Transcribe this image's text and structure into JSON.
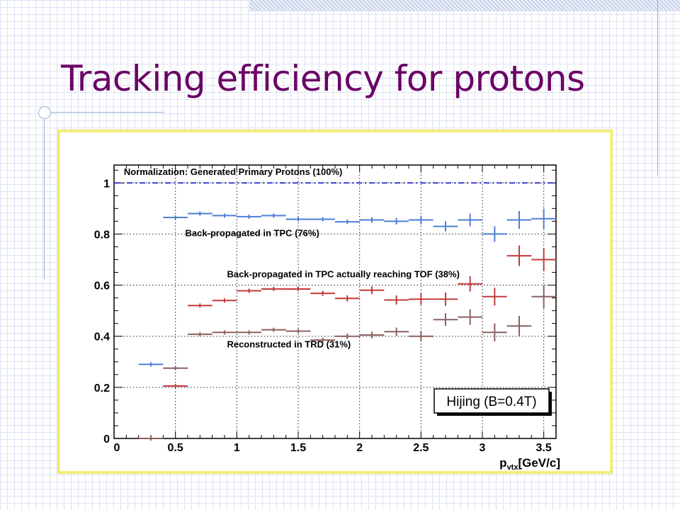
{
  "slide": {
    "title": "Tracking efficiency for protons"
  },
  "chart_data": {
    "type": "scatter",
    "xlabel": "p_vtx [GeV/c]",
    "xlabel_main": "p",
    "xlabel_sub": "vtx",
    "xlabel_unit": "[GeV/c]",
    "ylabel": "",
    "xlim": [
      0,
      3.6
    ],
    "ylim": [
      0,
      1.07
    ],
    "x_ticks": [
      {
        "value": 0,
        "label": "0"
      },
      {
        "value": 0.5,
        "label": "0.5"
      },
      {
        "value": 1,
        "label": "1"
      },
      {
        "value": 1.5,
        "label": "1.5"
      },
      {
        "value": 2,
        "label": "2"
      },
      {
        "value": 2.5,
        "label": "2.5"
      },
      {
        "value": 3,
        "label": "3"
      },
      {
        "value": 3.5,
        "label": "3.5"
      }
    ],
    "y_ticks": [
      {
        "value": 0,
        "label": "0"
      },
      {
        "value": 0.2,
        "label": "0.2"
      },
      {
        "value": 0.4,
        "label": "0.4"
      },
      {
        "value": 0.6,
        "label": "0.6"
      },
      {
        "value": 0.8,
        "label": "0.8"
      },
      {
        "value": 1,
        "label": "1"
      }
    ],
    "grid": true,
    "reference_line": {
      "y": 1.0,
      "color": "#3b3bd4"
    },
    "annotations": [
      {
        "text": "Normalization: Generated Primary Protons (100%)",
        "x": 0.08,
        "y": 1.045
      },
      {
        "text": "Back-propagated in TPC (76%)",
        "x": 0.58,
        "y": 0.805
      },
      {
        "text": "Back-propagated in TPC actually reaching TOF (38%)",
        "x": 0.92,
        "y": 0.645
      },
      {
        "text": "Reconstructed in TRD (31%)",
        "x": 0.92,
        "y": 0.37
      }
    ],
    "legend_box": {
      "text": "Hijing (B=0.4T)",
      "placement": "bottom-right"
    },
    "series": [
      {
        "color": "#4d7fd6",
        "points": [
          {
            "x": 0.3,
            "y": 0.29,
            "xerr": 0.1,
            "yerr": 0.003
          },
          {
            "x": 0.5,
            "y": 0.865,
            "xerr": 0.1,
            "yerr": 0.004
          },
          {
            "x": 0.7,
            "y": 0.88,
            "xerr": 0.1,
            "yerr": 0.004
          },
          {
            "x": 0.9,
            "y": 0.872,
            "xerr": 0.1,
            "yerr": 0.004
          },
          {
            "x": 1.1,
            "y": 0.868,
            "xerr": 0.1,
            "yerr": 0.005
          },
          {
            "x": 1.3,
            "y": 0.872,
            "xerr": 0.1,
            "yerr": 0.005
          },
          {
            "x": 1.5,
            "y": 0.858,
            "xerr": 0.1,
            "yerr": 0.006
          },
          {
            "x": 1.7,
            "y": 0.858,
            "xerr": 0.1,
            "yerr": 0.007
          },
          {
            "x": 1.9,
            "y": 0.848,
            "xerr": 0.1,
            "yerr": 0.009
          },
          {
            "x": 2.1,
            "y": 0.855,
            "xerr": 0.1,
            "yerr": 0.011
          },
          {
            "x": 2.3,
            "y": 0.85,
            "xerr": 0.1,
            "yerr": 0.013
          },
          {
            "x": 2.5,
            "y": 0.855,
            "xerr": 0.1,
            "yerr": 0.017
          },
          {
            "x": 2.7,
            "y": 0.83,
            "xerr": 0.1,
            "yerr": 0.02
          },
          {
            "x": 2.9,
            "y": 0.855,
            "xerr": 0.1,
            "yerr": 0.025
          },
          {
            "x": 3.1,
            "y": 0.8,
            "xerr": 0.1,
            "yerr": 0.03
          },
          {
            "x": 3.3,
            "y": 0.855,
            "xerr": 0.1,
            "yerr": 0.035
          },
          {
            "x": 3.5,
            "y": 0.86,
            "xerr": 0.1,
            "yerr": 0.04
          }
        ]
      },
      {
        "color": "#c43a3a",
        "points": [
          {
            "x": 0.3,
            "y": 0.0,
            "xerr": 0.1,
            "yerr": 0.002
          },
          {
            "x": 0.5,
            "y": 0.205,
            "xerr": 0.1,
            "yerr": 0.003
          },
          {
            "x": 0.7,
            "y": 0.52,
            "xerr": 0.1,
            "yerr": 0.004
          },
          {
            "x": 0.9,
            "y": 0.54,
            "xerr": 0.1,
            "yerr": 0.005
          },
          {
            "x": 1.1,
            "y": 0.578,
            "xerr": 0.1,
            "yerr": 0.006
          },
          {
            "x": 1.3,
            "y": 0.585,
            "xerr": 0.1,
            "yerr": 0.007
          },
          {
            "x": 1.5,
            "y": 0.585,
            "xerr": 0.1,
            "yerr": 0.008
          },
          {
            "x": 1.7,
            "y": 0.568,
            "xerr": 0.1,
            "yerr": 0.01
          },
          {
            "x": 1.9,
            "y": 0.548,
            "xerr": 0.1,
            "yerr": 0.012
          },
          {
            "x": 2.1,
            "y": 0.58,
            "xerr": 0.1,
            "yerr": 0.015
          },
          {
            "x": 2.3,
            "y": 0.542,
            "xerr": 0.1,
            "yerr": 0.018
          },
          {
            "x": 2.5,
            "y": 0.545,
            "xerr": 0.1,
            "yerr": 0.022
          },
          {
            "x": 2.7,
            "y": 0.545,
            "xerr": 0.1,
            "yerr": 0.026
          },
          {
            "x": 2.9,
            "y": 0.605,
            "xerr": 0.1,
            "yerr": 0.03
          },
          {
            "x": 3.1,
            "y": 0.555,
            "xerr": 0.1,
            "yerr": 0.035
          },
          {
            "x": 3.3,
            "y": 0.715,
            "xerr": 0.1,
            "yerr": 0.04
          },
          {
            "x": 3.5,
            "y": 0.7,
            "xerr": 0.1,
            "yerr": 0.045
          }
        ]
      },
      {
        "color": "#8c6060",
        "points": [
          {
            "x": 0.3,
            "y": 0.0,
            "xerr": 0.1,
            "yerr": 0.002
          },
          {
            "x": 0.5,
            "y": 0.275,
            "xerr": 0.1,
            "yerr": 0.003
          },
          {
            "x": 0.7,
            "y": 0.408,
            "xerr": 0.1,
            "yerr": 0.004
          },
          {
            "x": 0.9,
            "y": 0.415,
            "xerr": 0.1,
            "yerr": 0.005
          },
          {
            "x": 1.1,
            "y": 0.415,
            "xerr": 0.1,
            "yerr": 0.006
          },
          {
            "x": 1.3,
            "y": 0.425,
            "xerr": 0.1,
            "yerr": 0.007
          },
          {
            "x": 1.5,
            "y": 0.42,
            "xerr": 0.1,
            "yerr": 0.008
          },
          {
            "x": 1.7,
            "y": 0.385,
            "xerr": 0.1,
            "yerr": 0.009
          },
          {
            "x": 1.9,
            "y": 0.4,
            "xerr": 0.1,
            "yerr": 0.011
          },
          {
            "x": 2.1,
            "y": 0.405,
            "xerr": 0.1,
            "yerr": 0.013
          },
          {
            "x": 2.3,
            "y": 0.418,
            "xerr": 0.1,
            "yerr": 0.016
          },
          {
            "x": 2.5,
            "y": 0.4,
            "xerr": 0.1,
            "yerr": 0.02
          },
          {
            "x": 2.7,
            "y": 0.465,
            "xerr": 0.1,
            "yerr": 0.025
          },
          {
            "x": 2.9,
            "y": 0.475,
            "xerr": 0.1,
            "yerr": 0.03
          },
          {
            "x": 3.1,
            "y": 0.415,
            "xerr": 0.1,
            "yerr": 0.035
          },
          {
            "x": 3.3,
            "y": 0.44,
            "xerr": 0.1,
            "yerr": 0.04
          },
          {
            "x": 3.5,
            "y": 0.555,
            "xerr": 0.1,
            "yerr": 0.045
          }
        ]
      }
    ]
  }
}
